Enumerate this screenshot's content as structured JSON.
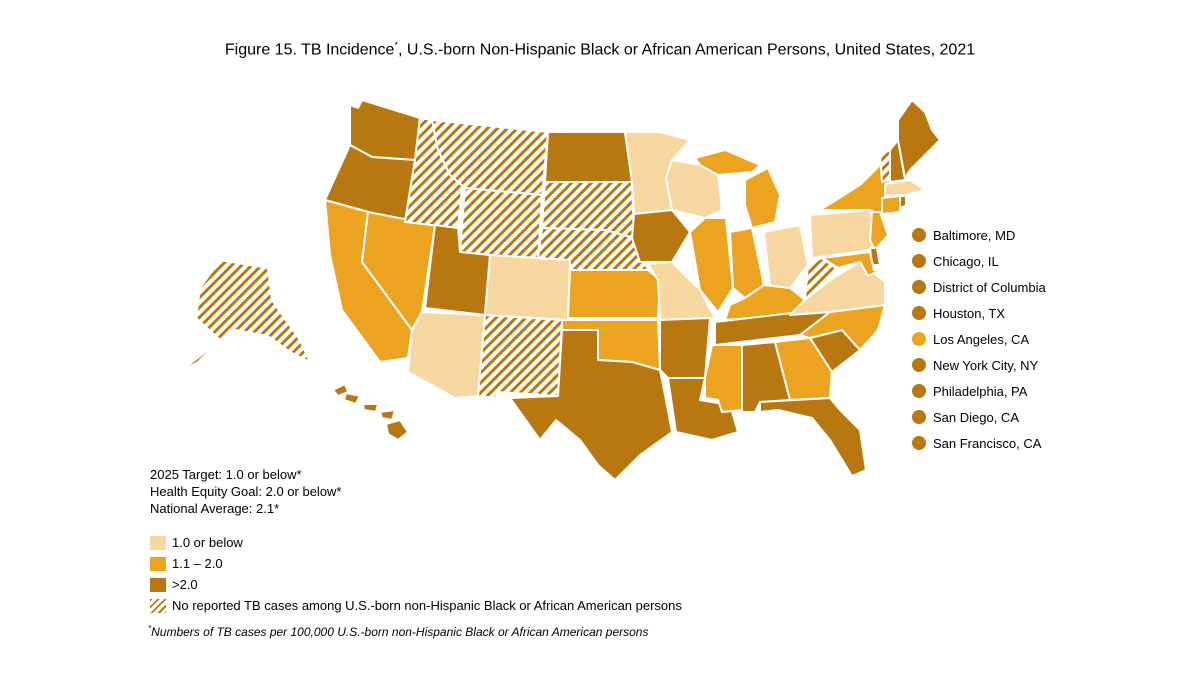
{
  "title": {
    "prefix": "Figure 15. TB Incidence",
    "marker": "*",
    "suffix": ", U.S.-born Non-Hispanic Black or African American Persons, United States, 2021"
  },
  "colors": {
    "low": "#f8d6a0",
    "mid": "#eca420",
    "high": "#b8780f",
    "hatch": "#b8780f",
    "border": "#ffffff"
  },
  "states": [
    {
      "name": "WA",
      "cat": "high"
    },
    {
      "name": "OR",
      "cat": "high"
    },
    {
      "name": "CA",
      "cat": "mid"
    },
    {
      "name": "NV",
      "cat": "mid"
    },
    {
      "name": "ID",
      "cat": "none"
    },
    {
      "name": "MT",
      "cat": "none"
    },
    {
      "name": "WY",
      "cat": "none"
    },
    {
      "name": "UT",
      "cat": "high"
    },
    {
      "name": "AZ",
      "cat": "low"
    },
    {
      "name": "CO",
      "cat": "low"
    },
    {
      "name": "NM",
      "cat": "none"
    },
    {
      "name": "ND",
      "cat": "high"
    },
    {
      "name": "SD",
      "cat": "none"
    },
    {
      "name": "NE",
      "cat": "none"
    },
    {
      "name": "KS",
      "cat": "mid"
    },
    {
      "name": "OK",
      "cat": "mid"
    },
    {
      "name": "TX",
      "cat": "high"
    },
    {
      "name": "MN",
      "cat": "low"
    },
    {
      "name": "IA",
      "cat": "high"
    },
    {
      "name": "MO",
      "cat": "low"
    },
    {
      "name": "AR",
      "cat": "high"
    },
    {
      "name": "LA",
      "cat": "high"
    },
    {
      "name": "WI",
      "cat": "low"
    },
    {
      "name": "IL",
      "cat": "mid"
    },
    {
      "name": "MI",
      "cat": "mid"
    },
    {
      "name": "IN",
      "cat": "mid"
    },
    {
      "name": "OH",
      "cat": "low"
    },
    {
      "name": "KY",
      "cat": "mid"
    },
    {
      "name": "TN",
      "cat": "high"
    },
    {
      "name": "MS",
      "cat": "mid"
    },
    {
      "name": "AL",
      "cat": "high"
    },
    {
      "name": "GA",
      "cat": "mid"
    },
    {
      "name": "FL",
      "cat": "high"
    },
    {
      "name": "SC",
      "cat": "high"
    },
    {
      "name": "NC",
      "cat": "mid"
    },
    {
      "name": "VA",
      "cat": "low"
    },
    {
      "name": "WV",
      "cat": "none"
    },
    {
      "name": "PA",
      "cat": "low"
    },
    {
      "name": "NY",
      "cat": "mid"
    },
    {
      "name": "VT",
      "cat": "none"
    },
    {
      "name": "NH",
      "cat": "high"
    },
    {
      "name": "ME",
      "cat": "high"
    },
    {
      "name": "MA",
      "cat": "low"
    },
    {
      "name": "CT",
      "cat": "mid"
    },
    {
      "name": "RI",
      "cat": "high"
    },
    {
      "name": "NJ",
      "cat": "mid"
    },
    {
      "name": "DE",
      "cat": "high"
    },
    {
      "name": "MD",
      "cat": "mid"
    },
    {
      "name": "AK",
      "cat": "none"
    },
    {
      "name": "HI",
      "cat": "high"
    }
  ],
  "cities": [
    {
      "name": "Baltimore, MD",
      "color": "#b8780f"
    },
    {
      "name": "Chicago, IL",
      "color": "#b8780f"
    },
    {
      "name": "District of Columbia",
      "color": "#b8780f"
    },
    {
      "name": "Houston, TX",
      "color": "#b8780f"
    },
    {
      "name": "Los Angeles, CA",
      "color": "#eca420"
    },
    {
      "name": "New York City, NY",
      "color": "#b8780f"
    },
    {
      "name": "Philadelphia, PA",
      "color": "#b8780f"
    },
    {
      "name": "San Diego, CA",
      "color": "#b8780f"
    },
    {
      "name": "San Francisco, CA",
      "color": "#b8780f"
    }
  ],
  "targets": {
    "target_2025": "2025 Target: 1.0 or below*",
    "equity_goal": "Health Equity Goal: 2.0 or below*",
    "national_average": "National Average: 2.1*"
  },
  "legend": {
    "low": "1.0 or below",
    "mid": "1.1 – 2.0",
    "high": ">2.0",
    "none": "No reported TB cases among U.S.-born non-Hispanic Black or African American persons"
  },
  "footnote": {
    "marker": "*",
    "text": "Numbers of TB cases per 100,000 U.S.-born non-Hispanic Black or African American persons"
  }
}
